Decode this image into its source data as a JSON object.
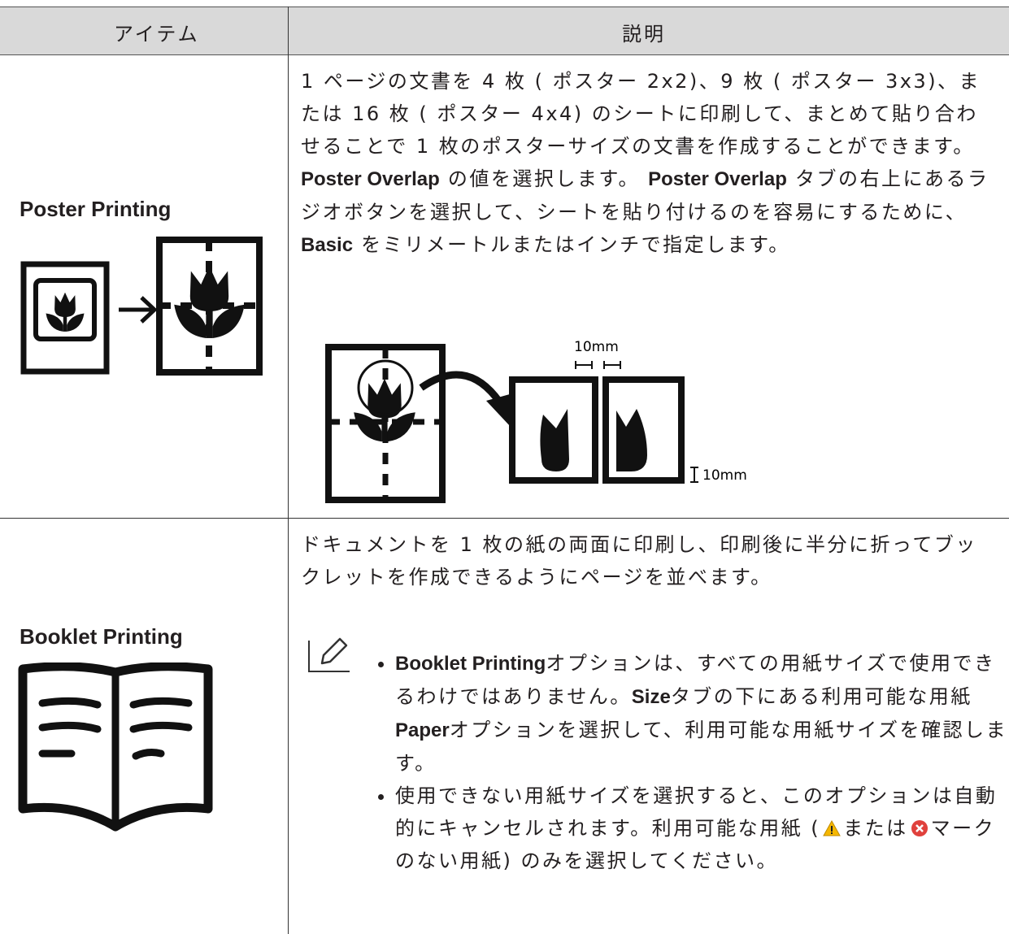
{
  "table": {
    "header": {
      "item": "アイテム",
      "description": "説明"
    },
    "rows": [
      {
        "item": "Poster Printing",
        "paragraphs": [
          [
            {
              "text": "1 ページの文書を 4 枚 ( ポスター 2x2)、9 枚 ( ポスター 3x3)、または 16 枚 ( ポスター 4x4) のシートに印刷して、まとめて貼り合わせることで 1 枚のポスターサイズの文書を作成することができます。",
              "bold": false
            }
          ],
          [
            {
              "text": "Poster Overlap",
              "bold": true
            },
            {
              "text": " の値を選択します。 ",
              "bold": false
            },
            {
              "text": "Poster Overlap",
              "bold": true
            },
            {
              "text": " タブの右上にあるラジオボタンを選択して、シートを貼り付けるのを容易にするために、 ",
              "bold": false
            },
            {
              "text": "Basic",
              "bold": true
            },
            {
              "text": " をミリメートルまたはインチで指定します。",
              "bold": false
            }
          ]
        ],
        "figure_labels": [
          "10mm",
          "10mm"
        ]
      },
      {
        "item": "Booklet Printing",
        "paragraphs": [
          [
            {
              "text": "ドキュメントを 1 枚の紙の両面に印刷し、印刷後に半分に折ってブックレットを作成できるようにページを並べます。",
              "bold": false
            }
          ]
        ],
        "note": [
          [
            {
              "text": "Booklet Printing",
              "bold": true
            },
            {
              "text": "オプションは、すべての用紙サイズで使用できるわけではありません。",
              "bold": false
            },
            {
              "text": "Size",
              "bold": true
            },
            {
              "text": "タブの下にある利用可能な用紙",
              "bold": false
            },
            {
              "text": "Paper",
              "bold": true
            },
            {
              "text": "オプションを選択して、利用可能な用紙サイズを確認します。",
              "bold": false
            }
          ],
          [
            {
              "text": "使用できない用紙サイズを選択すると、このオプションは自動的にキャンセルされます。利用可能な用紙 (",
              "bold": false
            },
            {
              "icon": "warning"
            },
            {
              "text": "または",
              "bold": false
            },
            {
              "icon": "error"
            },
            {
              "text": "マークのない用紙) のみを選択してください。",
              "bold": false
            }
          ]
        ]
      }
    ]
  }
}
